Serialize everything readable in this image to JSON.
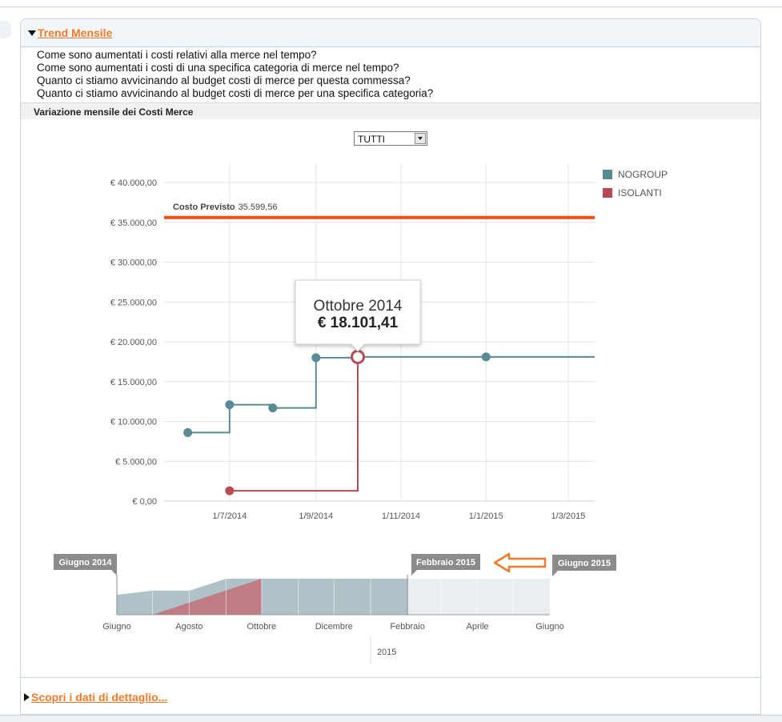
{
  "panel": {
    "title": "Trend Mensile",
    "questions": [
      "Come sono aumentati i costi relativi alla merce nel tempo?",
      "Come sono aumentati i costi di una specifica categoria di merce nel tempo?",
      "Quanto ci stiamo avvicinando al budget costi di merce per questa commessa?",
      "Quanto ci stiamo avvicinando al budget costi di merce per una specifica categoria?"
    ],
    "subheader": "Variazione mensile dei Costi Merce",
    "filter_value": "TUTTI",
    "detail_link": "Scopri i dati di dettaglio..."
  },
  "colors": {
    "nogroup": "#5a8a94",
    "isolanti": "#b94a55",
    "budget": "#f04e12",
    "accent": "#f07a2a"
  },
  "chart_data": {
    "type": "line",
    "step": true,
    "ylim": [
      0,
      40000
    ],
    "y_ticks": [
      {
        "value": 0,
        "label": "€ 0,00"
      },
      {
        "value": 5000,
        "label": "€ 5.000,00"
      },
      {
        "value": 10000,
        "label": "€ 10.000,00"
      },
      {
        "value": 15000,
        "label": "€ 15.000,00"
      },
      {
        "value": 20000,
        "label": "€ 20.000,00"
      },
      {
        "value": 25000,
        "label": "€ 25.000,00"
      },
      {
        "value": 30000,
        "label": "€ 30.000,00"
      },
      {
        "value": 35000,
        "label": "€ 35.000,00"
      },
      {
        "value": 40000,
        "label": "€ 40.000,00"
      }
    ],
    "xlim": [
      "2014-05-15",
      "2015-03-20"
    ],
    "x_ticks": [
      {
        "date": "2014-07-01",
        "label": "1/7/2014"
      },
      {
        "date": "2014-09-01",
        "label": "1/9/2014"
      },
      {
        "date": "2014-11-01",
        "label": "1/11/2014"
      },
      {
        "date": "2015-01-01",
        "label": "1/1/2015"
      },
      {
        "date": "2015-03-01",
        "label": "1/3/2015"
      }
    ],
    "budget_line": {
      "label": "Costo Previsto",
      "value_label": "35.599,56",
      "value": 35599.56
    },
    "series": [
      {
        "name": "NOGROUP",
        "color": "#5a8a94",
        "points": [
          {
            "x": "2014-06-01",
            "y": 8600
          },
          {
            "x": "2014-07-01",
            "y": 12100
          },
          {
            "x": "2014-08-01",
            "y": 11700
          },
          {
            "x": "2014-09-01",
            "y": 18000
          },
          {
            "x": "2014-10-01",
            "y": 18101.41
          },
          {
            "x": "2015-01-01",
            "y": 18101.41
          }
        ]
      },
      {
        "name": "ISOLANTI",
        "color": "#b94a55",
        "points": [
          {
            "x": "2014-07-01",
            "y": 1300
          },
          {
            "x": "2014-10-01",
            "y": 18101.41
          }
        ]
      }
    ],
    "tooltip": {
      "title": "Ottobre 2014",
      "value": "€ 18.101,41",
      "x": "2014-10-01",
      "y": 18101.41
    },
    "legend": {
      "placement": "top-right"
    },
    "navigator": {
      "labels": [
        "Giugno",
        "Agosto",
        "Ottobre",
        "Dicembre",
        "Febbraio",
        "Aprile",
        "Giugno"
      ],
      "year_label": "2015",
      "range_start": "Giugno 2014",
      "range_mid": "Febbraio 2015",
      "range_end": "Giugno 2015",
      "selected_start": "2014-06-01",
      "selected_end": "2015-02-01",
      "end": "2015-06-01"
    }
  }
}
